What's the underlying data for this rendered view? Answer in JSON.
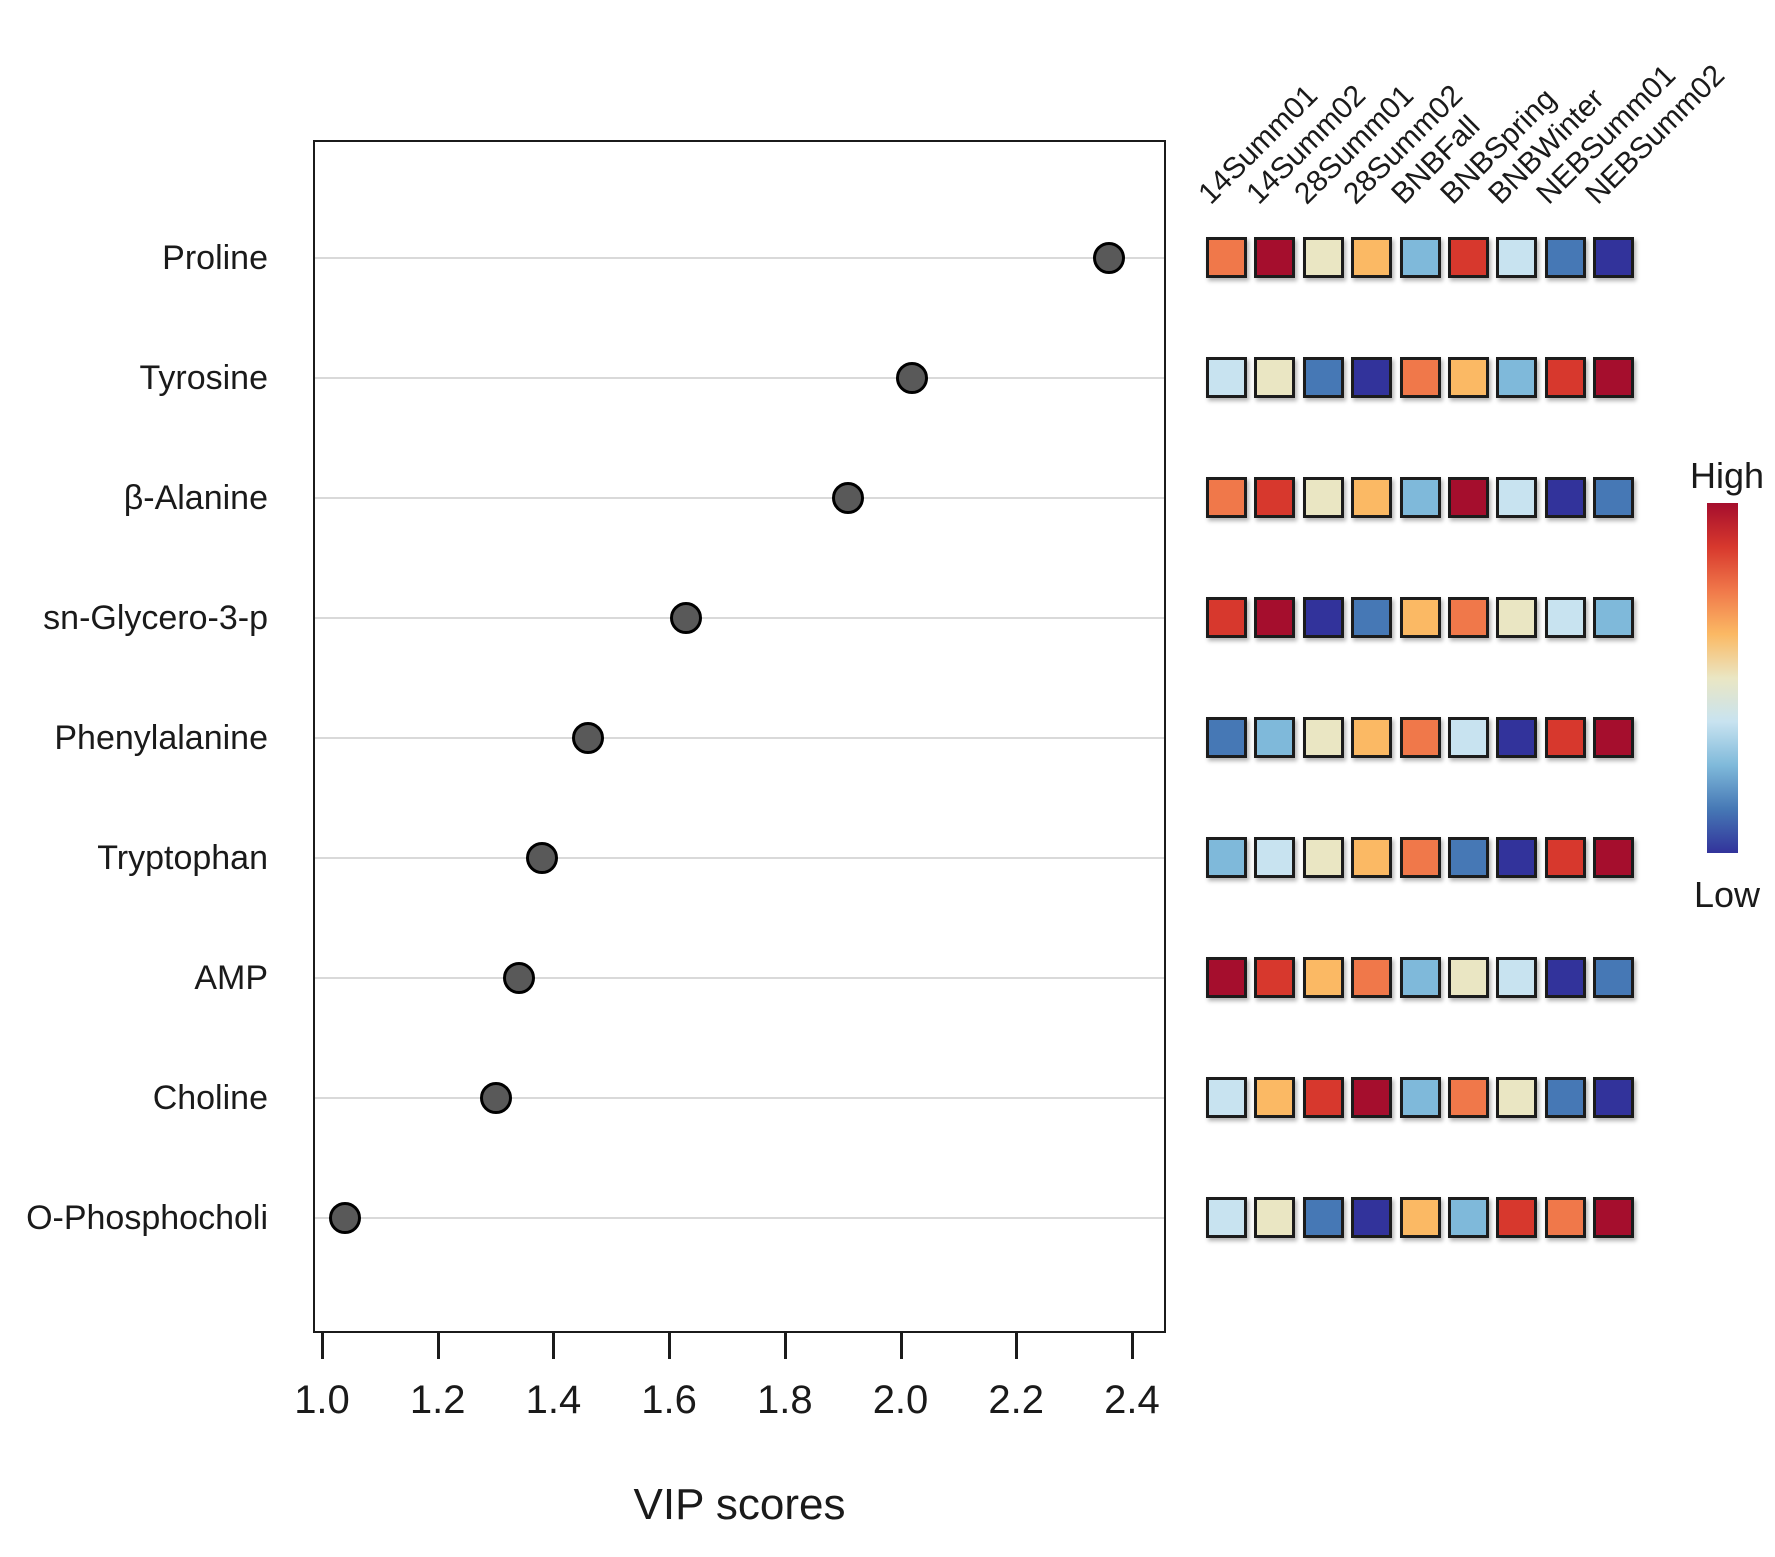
{
  "chart_data": [
    {
      "type": "scatter",
      "title": "",
      "xlabel": "VIP scores",
      "categories": [
        "Proline",
        "Tyrosine",
        "β-Alanine",
        "sn-Glycero-3-p",
        "Phenylalanine",
        "Tryptophan",
        "AMP",
        "Choline",
        "O-Phosphocholi"
      ],
      "values": [
        2.36,
        2.02,
        1.91,
        1.63,
        1.46,
        1.38,
        1.34,
        1.3,
        1.04
      ],
      "x_ticks": [
        "1.0",
        "1.2",
        "1.4",
        "1.6",
        "1.8",
        "2.0",
        "2.2",
        "2.4"
      ],
      "xlim": [
        0.98,
        2.46
      ],
      "grid": "horizontal",
      "marker_color": "#595959",
      "legend_position": "none"
    },
    {
      "type": "heatmap",
      "columns": [
        "14Summ01",
        "14Summ02",
        "28Summ01",
        "28Summ02",
        "BNBFall",
        "BNBSpring",
        "BNBWinter",
        "NEBSumm01",
        "NEBSumm02"
      ],
      "rows": [
        "Proline",
        "Tyrosine",
        "β-Alanine",
        "sn-Glycero-3-p",
        "Phenylalanine",
        "Tryptophan",
        "AMP",
        "Choline",
        "O-Phosphocholi"
      ],
      "palette_high_to_low": [
        "#A50E2D",
        "#D7382D",
        "#F0784A",
        "#FBB964",
        "#EAE6C3",
        "#C8E3F0",
        "#7FB9DA",
        "#4678B5",
        "#32339B"
      ],
      "legend": {
        "high": "High",
        "low": "Low"
      },
      "cells": [
        [
          "#F0784A",
          "#A50E2D",
          "#EAE6C3",
          "#FBB964",
          "#7FB9DA",
          "#D7382D",
          "#C8E3F0",
          "#4678B5",
          "#32339B"
        ],
        [
          "#C8E3F0",
          "#EAE6C3",
          "#4678B5",
          "#32339B",
          "#F0784A",
          "#FBB964",
          "#7FB9DA",
          "#D7382D",
          "#A50E2D"
        ],
        [
          "#F0784A",
          "#D7382D",
          "#EAE6C3",
          "#FBB964",
          "#7FB9DA",
          "#A50E2D",
          "#C8E3F0",
          "#32339B",
          "#4678B5"
        ],
        [
          "#D7382D",
          "#A50E2D",
          "#32339B",
          "#4678B5",
          "#FBB964",
          "#F0784A",
          "#EAE6C3",
          "#C8E3F0",
          "#7FB9DA"
        ],
        [
          "#4678B5",
          "#7FB9DA",
          "#EAE6C3",
          "#FBB964",
          "#F0784A",
          "#C8E3F0",
          "#32339B",
          "#D7382D",
          "#A50E2D"
        ],
        [
          "#7FB9DA",
          "#C8E3F0",
          "#EAE6C3",
          "#FBB964",
          "#F0784A",
          "#4678B5",
          "#32339B",
          "#D7382D",
          "#A50E2D"
        ],
        [
          "#A50E2D",
          "#D7382D",
          "#FBB964",
          "#F0784A",
          "#7FB9DA",
          "#EAE6C3",
          "#C8E3F0",
          "#32339B",
          "#4678B5"
        ],
        [
          "#C8E3F0",
          "#FBB964",
          "#D7382D",
          "#A50E2D",
          "#7FB9DA",
          "#F0784A",
          "#EAE6C3",
          "#4678B5",
          "#32339B"
        ],
        [
          "#C8E3F0",
          "#EAE6C3",
          "#4678B5",
          "#32339B",
          "#FBB964",
          "#7FB9DA",
          "#D7382D",
          "#F0784A",
          "#A50E2D"
        ]
      ]
    }
  ]
}
